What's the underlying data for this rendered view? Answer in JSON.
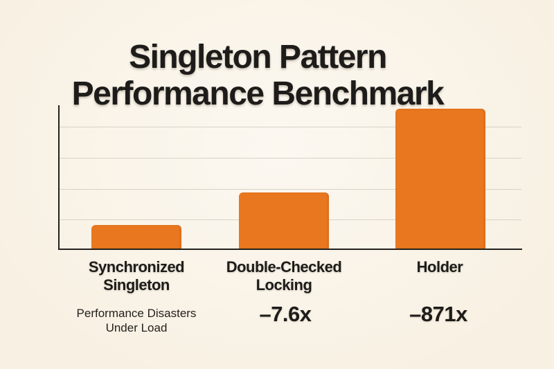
{
  "title": {
    "line1": "Singleton Pattern",
    "line2": "Performance Benchmark"
  },
  "colors": {
    "background": "#faf4e9",
    "bar": "#e8771f",
    "axis": "#23211e",
    "gridline": "#d8d2c5",
    "text": "#1d1c1a"
  },
  "chart_data": {
    "type": "bar",
    "title": "Singleton Pattern Performance Benchmark",
    "categories": [
      "Synchronized Singleton",
      "Double-Checked Locking",
      "Holder"
    ],
    "bar_heights_relative": [
      0.17,
      0.4,
      1.0
    ],
    "annotations": [
      "Performance Disasters Under Load",
      "–7.6x",
      "–871x"
    ],
    "bar_color": "#e8771f",
    "y_axis": {
      "tick_labels_shown": false,
      "gridline_count": 4
    },
    "x_axis": {
      "tick_labels_shown": true
    },
    "legend_shown": false
  },
  "columns": [
    {
      "line1": "Synchronized",
      "line2": "Singleton",
      "sub1": "Performance Disasters",
      "sub2": "Under Load"
    },
    {
      "line1": "Double-Checked",
      "line2": "Locking",
      "sub1": "–7.6x"
    },
    {
      "line1": "Holder",
      "sub1": "–871x"
    }
  ]
}
